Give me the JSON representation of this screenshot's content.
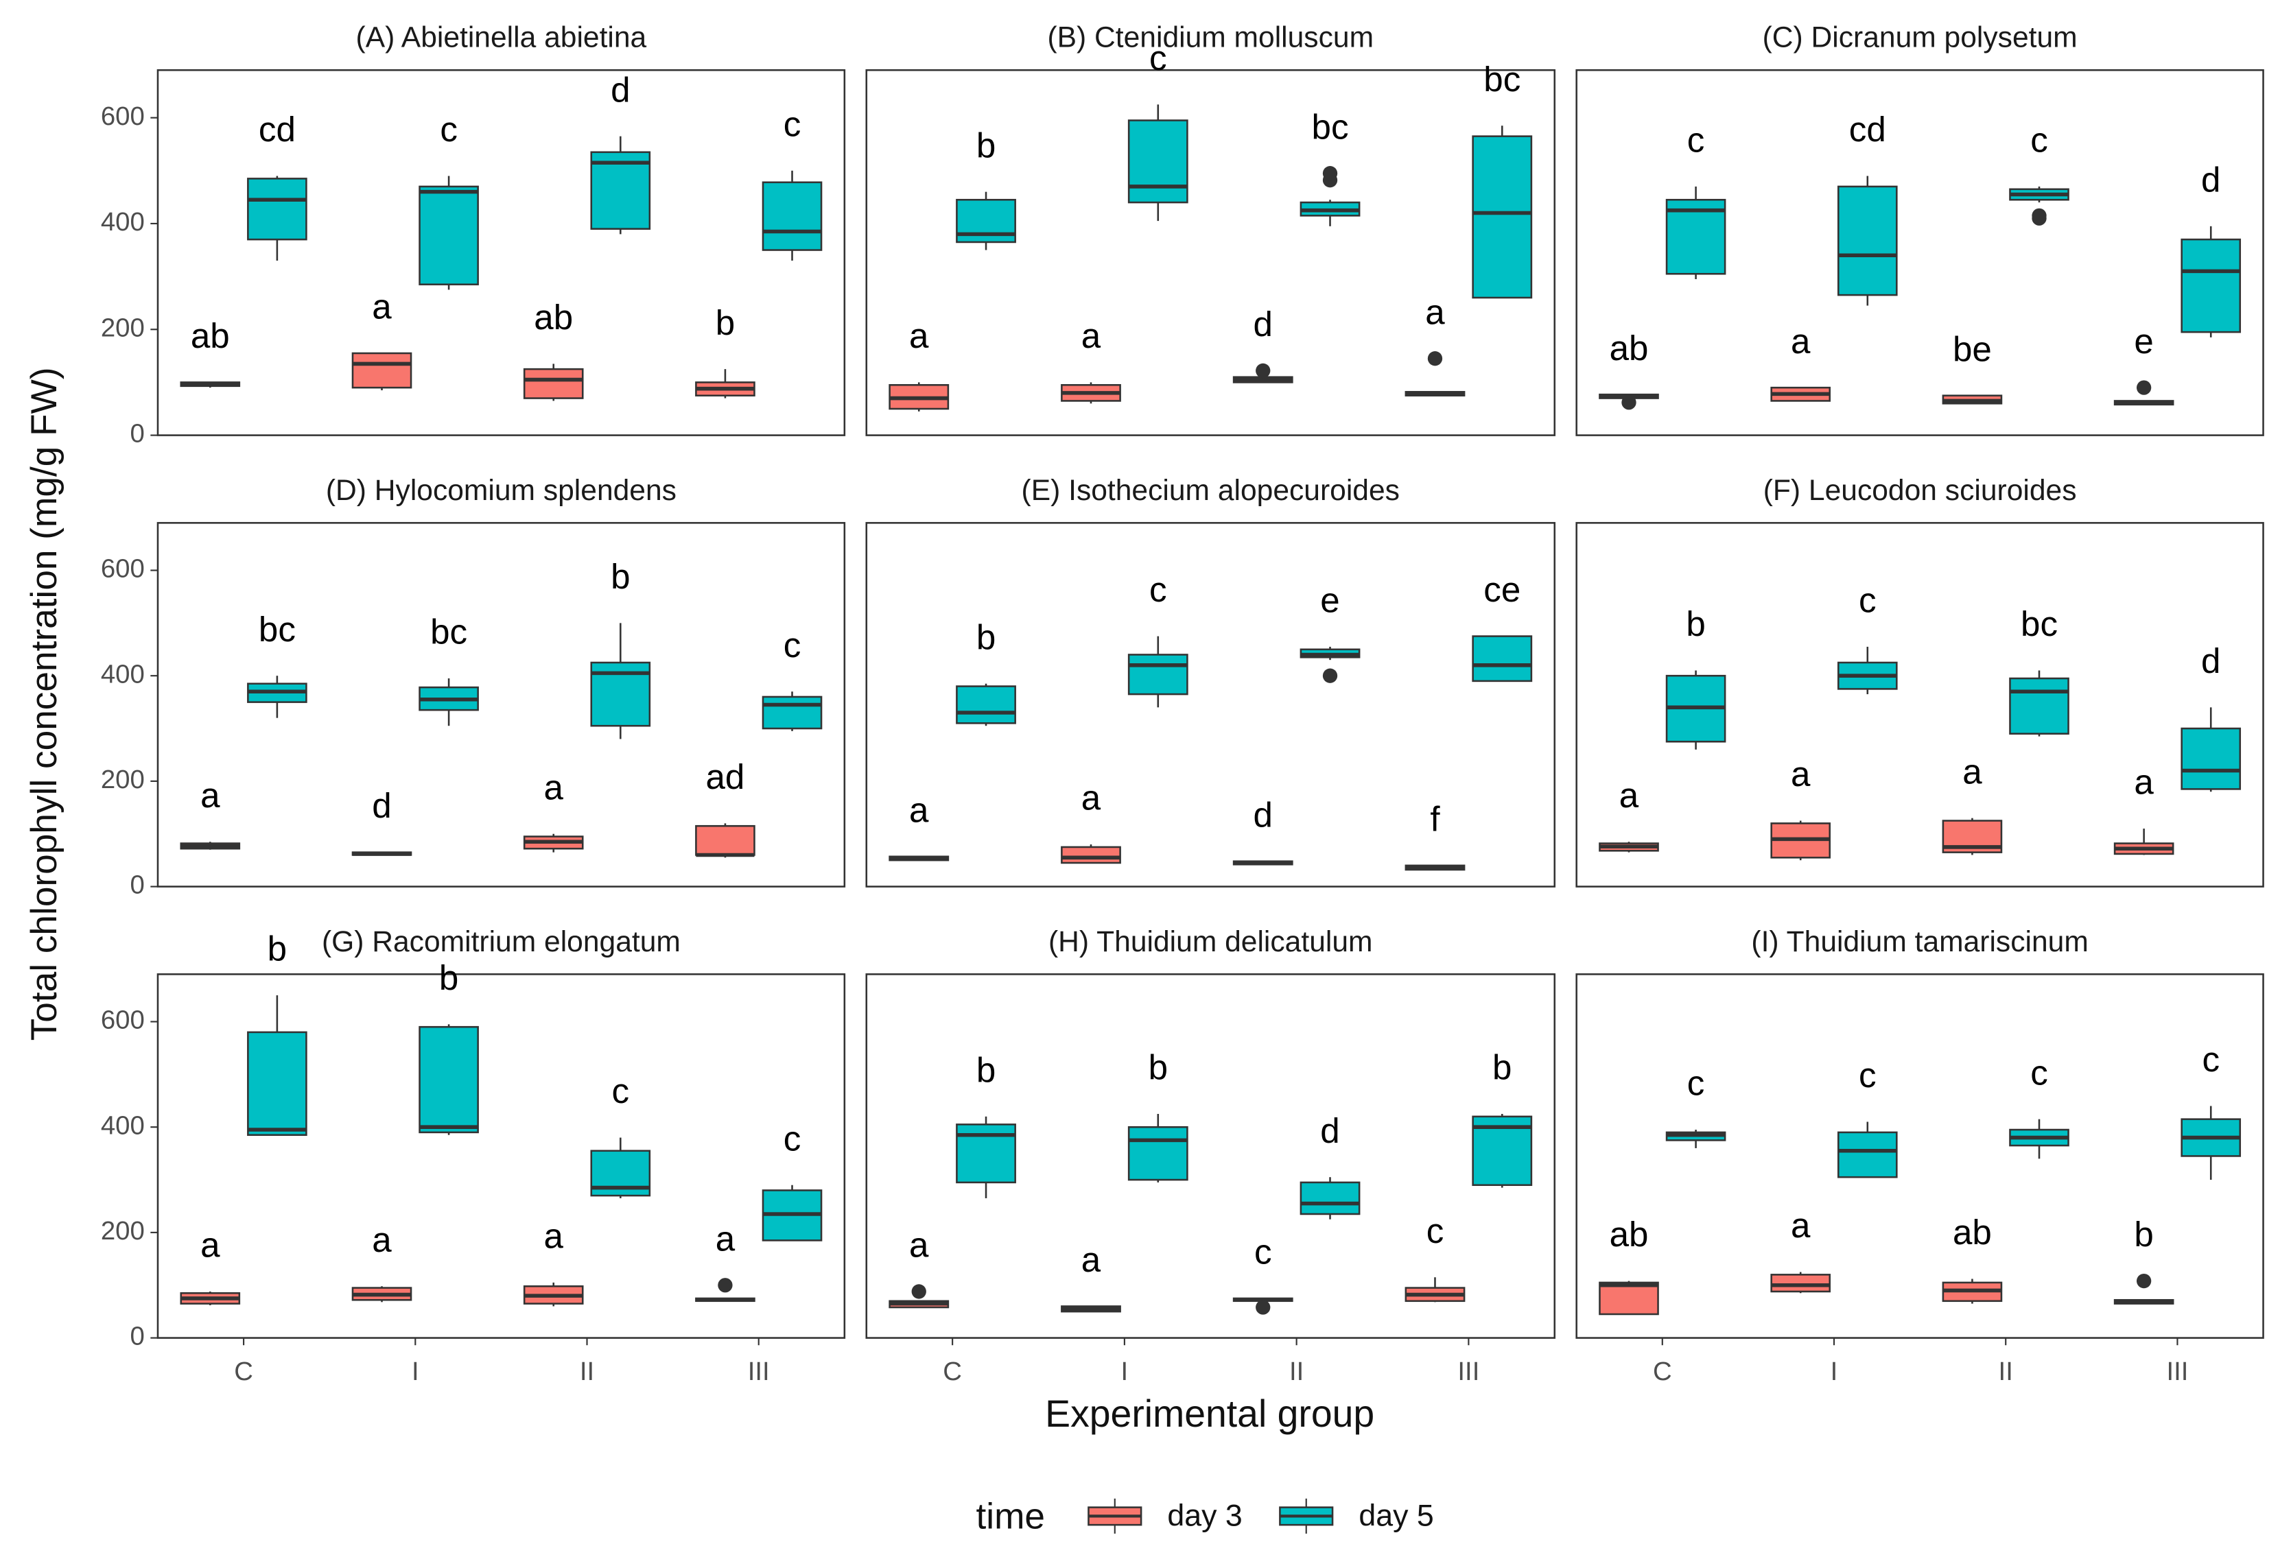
{
  "chart_data": {
    "type": "box",
    "ylabel": "Total chlorophyll concentration (mg/g FW)",
    "xlabel": "Experimental group",
    "legend_title": "time",
    "categories": [
      "C",
      "I",
      "II",
      "III"
    ],
    "ylim": [
      0,
      690
    ],
    "yticks": [
      0,
      200,
      400,
      600
    ],
    "series": [
      {
        "name": "day 3",
        "color": "#f8766d"
      },
      {
        "name": "day 5",
        "color": "#00bfc4"
      }
    ],
    "panels": [
      {
        "title": "(A) Abietinella abietina",
        "labels": [
          [
            "ab",
            "a",
            "ab",
            "b"
          ],
          [
            "cd",
            "c",
            "d",
            "c"
          ]
        ],
        "boxes": [
          [
            {
              "whislo": 90,
              "q1": 93,
              "med": 96,
              "q3": 100,
              "whishi": 100,
              "fliers": []
            },
            {
              "whislo": 85,
              "q1": 90,
              "med": 135,
              "q3": 155,
              "whishi": 155,
              "fliers": []
            },
            {
              "whislo": 65,
              "q1": 70,
              "med": 105,
              "q3": 125,
              "whishi": 135,
              "fliers": []
            },
            {
              "whislo": 70,
              "q1": 75,
              "med": 88,
              "q3": 100,
              "whishi": 125,
              "fliers": []
            }
          ],
          [
            {
              "whislo": 330,
              "q1": 370,
              "med": 445,
              "q3": 485,
              "whishi": 490,
              "fliers": []
            },
            {
              "whislo": 275,
              "q1": 285,
              "med": 460,
              "q3": 470,
              "whishi": 490,
              "fliers": []
            },
            {
              "whislo": 380,
              "q1": 390,
              "med": 515,
              "q3": 535,
              "whishi": 565,
              "fliers": []
            },
            {
              "whislo": 330,
              "q1": 350,
              "med": 385,
              "q3": 478,
              "whishi": 500,
              "fliers": []
            }
          ]
        ]
      },
      {
        "title": "(B) Ctenidium molluscum",
        "labels": [
          [
            "a",
            "a",
            "d",
            "a"
          ],
          [
            "b",
            "c",
            "bc",
            "bc"
          ]
        ],
        "boxes": [
          [
            {
              "whislo": 45,
              "q1": 50,
              "med": 70,
              "q3": 95,
              "whishi": 100,
              "fliers": []
            },
            {
              "whislo": 60,
              "q1": 65,
              "med": 80,
              "q3": 95,
              "whishi": 100,
              "fliers": []
            },
            {
              "whislo": 100,
              "q1": 100,
              "med": 105,
              "q3": 110,
              "whishi": 110,
              "fliers": [
                122
              ]
            },
            {
              "whislo": 75,
              "q1": 75,
              "med": 78,
              "q3": 82,
              "whishi": 82,
              "fliers": [
                145
              ]
            }
          ],
          [
            {
              "whislo": 350,
              "q1": 365,
              "med": 380,
              "q3": 445,
              "whishi": 460,
              "fliers": []
            },
            {
              "whislo": 405,
              "q1": 440,
              "med": 470,
              "q3": 595,
              "whishi": 625,
              "fliers": []
            },
            {
              "whislo": 395,
              "q1": 415,
              "med": 425,
              "q3": 440,
              "whishi": 445,
              "fliers": [
                482,
                495
              ]
            },
            {
              "whislo": 260,
              "q1": 260,
              "med": 420,
              "q3": 565,
              "whishi": 585,
              "fliers": []
            }
          ]
        ]
      },
      {
        "title": "(C) Dicranum polysetum",
        "labels": [
          [
            "ab",
            "a",
            "be",
            "e"
          ],
          [
            "c",
            "cd",
            "c",
            "d"
          ]
        ],
        "boxes": [
          [
            {
              "whislo": 70,
              "q1": 70,
              "med": 73,
              "q3": 77,
              "whishi": 77,
              "fliers": [
                62
              ]
            },
            {
              "whislo": 65,
              "q1": 65,
              "med": 78,
              "q3": 90,
              "whishi": 90,
              "fliers": []
            },
            {
              "whislo": 60,
              "q1": 60,
              "med": 65,
              "q3": 75,
              "whishi": 75,
              "fliers": []
            },
            {
              "whislo": 58,
              "q1": 58,
              "med": 60,
              "q3": 65,
              "whishi": 65,
              "fliers": [
                90
              ]
            }
          ],
          [
            {
              "whislo": 295,
              "q1": 305,
              "med": 425,
              "q3": 445,
              "whishi": 470,
              "fliers": []
            },
            {
              "whislo": 245,
              "q1": 265,
              "med": 340,
              "q3": 470,
              "whishi": 490,
              "fliers": []
            },
            {
              "whislo": 440,
              "q1": 445,
              "med": 455,
              "q3": 465,
              "whishi": 470,
              "fliers": [
                410,
                415
              ]
            },
            {
              "whislo": 185,
              "q1": 195,
              "med": 310,
              "q3": 370,
              "whishi": 395,
              "fliers": []
            }
          ]
        ]
      },
      {
        "title": "(D) Hylocomium splendens",
        "labels": [
          [
            "a",
            "d",
            "a",
            "ad"
          ],
          [
            "bc",
            "bc",
            "b",
            "c"
          ]
        ],
        "boxes": [
          [
            {
              "whislo": 70,
              "q1": 72,
              "med": 77,
              "q3": 82,
              "whishi": 85,
              "fliers": []
            },
            {
              "whislo": 60,
              "q1": 60,
              "med": 62,
              "q3": 65,
              "whishi": 65,
              "fliers": []
            },
            {
              "whislo": 65,
              "q1": 72,
              "med": 85,
              "q3": 95,
              "whishi": 100,
              "fliers": []
            },
            {
              "whislo": 55,
              "q1": 60,
              "med": 60,
              "q3": 115,
              "whishi": 120,
              "fliers": []
            }
          ],
          [
            {
              "whislo": 320,
              "q1": 350,
              "med": 370,
              "q3": 385,
              "whishi": 400,
              "fliers": []
            },
            {
              "whislo": 305,
              "q1": 335,
              "med": 355,
              "q3": 378,
              "whishi": 395,
              "fliers": []
            },
            {
              "whislo": 280,
              "q1": 305,
              "med": 405,
              "q3": 425,
              "whishi": 500,
              "fliers": []
            },
            {
              "whislo": 295,
              "q1": 300,
              "med": 345,
              "q3": 360,
              "whishi": 370,
              "fliers": []
            }
          ]
        ]
      },
      {
        "title": "(E) Isothecium alopecuroides",
        "labels": [
          [
            "a",
            "a",
            "d",
            "f"
          ],
          [
            "b",
            "c",
            "e",
            "ce"
          ]
        ],
        "boxes": [
          [
            {
              "whislo": 50,
              "q1": 50,
              "med": 55,
              "q3": 57,
              "whishi": 57,
              "fliers": []
            },
            {
              "whislo": 45,
              "q1": 45,
              "med": 55,
              "q3": 75,
              "whishi": 80,
              "fliers": []
            },
            {
              "whislo": 42,
              "q1": 42,
              "med": 45,
              "q3": 48,
              "whishi": 48,
              "fliers": []
            },
            {
              "whislo": 32,
              "q1": 32,
              "med": 36,
              "q3": 40,
              "whishi": 40,
              "fliers": []
            }
          ],
          [
            {
              "whislo": 305,
              "q1": 310,
              "med": 330,
              "q3": 380,
              "whishi": 385,
              "fliers": []
            },
            {
              "whislo": 340,
              "q1": 365,
              "med": 420,
              "q3": 440,
              "whishi": 475,
              "fliers": []
            },
            {
              "whislo": 430,
              "q1": 435,
              "med": 440,
              "q3": 450,
              "whishi": 455,
              "fliers": [
                400
              ]
            },
            {
              "whislo": 390,
              "q1": 390,
              "med": 420,
              "q3": 475,
              "whishi": 475,
              "fliers": []
            }
          ]
        ]
      },
      {
        "title": "(F) Leucodon sciuroides",
        "labels": [
          [
            "a",
            "a",
            "a",
            "a"
          ],
          [
            "b",
            "c",
            "bc",
            "d"
          ]
        ],
        "boxes": [
          [
            {
              "whislo": 65,
              "q1": 68,
              "med": 76,
              "q3": 82,
              "whishi": 85,
              "fliers": []
            },
            {
              "whislo": 50,
              "q1": 55,
              "med": 90,
              "q3": 120,
              "whishi": 125,
              "fliers": []
            },
            {
              "whislo": 60,
              "q1": 65,
              "med": 75,
              "q3": 125,
              "whishi": 130,
              "fliers": []
            },
            {
              "whislo": 60,
              "q1": 62,
              "med": 72,
              "q3": 82,
              "whishi": 110,
              "fliers": []
            }
          ],
          [
            {
              "whislo": 260,
              "q1": 275,
              "med": 340,
              "q3": 400,
              "whishi": 410,
              "fliers": []
            },
            {
              "whislo": 365,
              "q1": 375,
              "med": 400,
              "q3": 425,
              "whishi": 455,
              "fliers": []
            },
            {
              "whislo": 285,
              "q1": 290,
              "med": 370,
              "q3": 395,
              "whishi": 410,
              "fliers": []
            },
            {
              "whislo": 180,
              "q1": 185,
              "med": 220,
              "q3": 300,
              "whishi": 340,
              "fliers": []
            }
          ]
        ]
      },
      {
        "title": "(G) Racomitrium elongatum",
        "labels": [
          [
            "a",
            "a",
            "a",
            "a"
          ],
          [
            "b",
            "b",
            "c",
            "c"
          ]
        ],
        "boxes": [
          [
            {
              "whislo": 62,
              "q1": 65,
              "med": 75,
              "q3": 85,
              "whishi": 88,
              "fliers": []
            },
            {
              "whislo": 68,
              "q1": 72,
              "med": 82,
              "q3": 95,
              "whishi": 98,
              "fliers": []
            },
            {
              "whislo": 60,
              "q1": 65,
              "med": 80,
              "q3": 98,
              "whishi": 105,
              "fliers": []
            },
            {
              "whislo": 70,
              "q1": 70,
              "med": 72,
              "q3": 75,
              "whishi": 75,
              "fliers": [
                100
              ]
            }
          ],
          [
            {
              "whislo": 385,
              "q1": 385,
              "med": 395,
              "q3": 580,
              "whishi": 650,
              "fliers": []
            },
            {
              "whislo": 385,
              "q1": 390,
              "med": 400,
              "q3": 590,
              "whishi": 595,
              "fliers": []
            },
            {
              "whislo": 265,
              "q1": 270,
              "med": 285,
              "q3": 355,
              "whishi": 380,
              "fliers": []
            },
            {
              "whislo": 185,
              "q1": 185,
              "med": 235,
              "q3": 280,
              "whishi": 290,
              "fliers": []
            }
          ]
        ]
      },
      {
        "title": "(H) Thuidium delicatulum",
        "labels": [
          [
            "a",
            "a",
            "c",
            "c"
          ],
          [
            "b",
            "b",
            "d",
            "b"
          ]
        ],
        "boxes": [
          [
            {
              "whislo": 58,
              "q1": 58,
              "med": 65,
              "q3": 70,
              "whishi": 70,
              "fliers": [
                88
              ]
            },
            {
              "whislo": 50,
              "q1": 50,
              "med": 55,
              "q3": 60,
              "whishi": 60,
              "fliers": []
            },
            {
              "whislo": 70,
              "q1": 70,
              "med": 72,
              "q3": 75,
              "whishi": 75,
              "fliers": [
                58
              ]
            },
            {
              "whislo": 68,
              "q1": 70,
              "med": 82,
              "q3": 95,
              "whishi": 115,
              "fliers": []
            }
          ],
          [
            {
              "whislo": 265,
              "q1": 295,
              "med": 385,
              "q3": 405,
              "whishi": 420,
              "fliers": []
            },
            {
              "whislo": 295,
              "q1": 300,
              "med": 375,
              "q3": 400,
              "whishi": 425,
              "fliers": []
            },
            {
              "whislo": 225,
              "q1": 235,
              "med": 255,
              "q3": 295,
              "whishi": 305,
              "fliers": []
            },
            {
              "whislo": 285,
              "q1": 290,
              "med": 400,
              "q3": 420,
              "whishi": 425,
              "fliers": []
            }
          ]
        ]
      },
      {
        "title": "(I) Thuidium tamariscinum",
        "labels": [
          [
            "ab",
            "a",
            "ab",
            "b"
          ],
          [
            "c",
            "c",
            "c",
            "c"
          ]
        ],
        "boxes": [
          [
            {
              "whislo": 45,
              "q1": 45,
              "med": 100,
              "q3": 105,
              "whishi": 108,
              "fliers": []
            },
            {
              "whislo": 85,
              "q1": 88,
              "med": 100,
              "q3": 120,
              "whishi": 125,
              "fliers": []
            },
            {
              "whislo": 65,
              "q1": 70,
              "med": 90,
              "q3": 105,
              "whishi": 112,
              "fliers": []
            },
            {
              "whislo": 65,
              "q1": 65,
              "med": 68,
              "q3": 72,
              "whishi": 72,
              "fliers": [
                108
              ]
            }
          ],
          [
            {
              "whislo": 360,
              "q1": 375,
              "med": 385,
              "q3": 390,
              "whishi": 395,
              "fliers": []
            },
            {
              "whislo": 305,
              "q1": 305,
              "med": 355,
              "q3": 390,
              "whishi": 410,
              "fliers": []
            },
            {
              "whislo": 340,
              "q1": 365,
              "med": 380,
              "q3": 395,
              "whishi": 415,
              "fliers": []
            },
            {
              "whislo": 300,
              "q1": 345,
              "med": 380,
              "q3": 415,
              "whishi": 440,
              "fliers": []
            }
          ]
        ]
      }
    ]
  }
}
